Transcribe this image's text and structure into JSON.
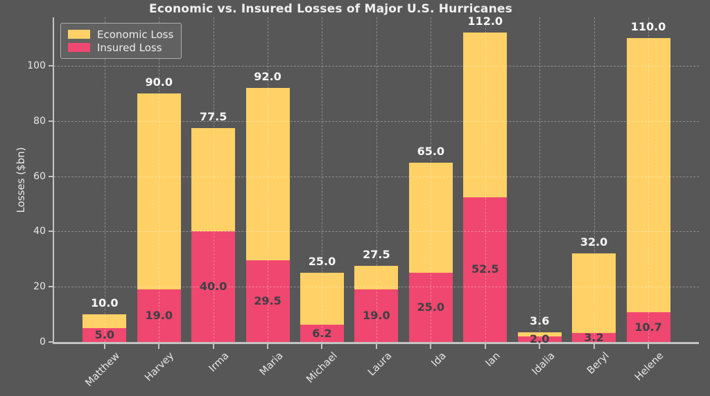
{
  "chart_data": {
    "type": "bar",
    "bar_mode": "overlay",
    "title": "Economic vs. Insured Losses of Major U.S. Hurricanes",
    "xlabel": "",
    "ylabel": "Losses ($bn)",
    "categories": [
      "Matthew",
      "Harvey",
      "Irma",
      "Maria",
      "Michael",
      "Laura",
      "Ida",
      "Ian",
      "Idalia",
      "Beryl",
      "Helene"
    ],
    "series": [
      {
        "name": "Economic Loss",
        "color": "#FFD166",
        "values": [
          10.0,
          90.0,
          77.5,
          92.0,
          25.0,
          27.5,
          65.0,
          112.0,
          3.6,
          32.0,
          110.0
        ]
      },
      {
        "name": "Insured Loss",
        "color": "#EF476F",
        "values": [
          5.0,
          19.0,
          40.0,
          29.5,
          6.2,
          19.0,
          25.0,
          52.5,
          2.0,
          3.2,
          10.7
        ]
      }
    ],
    "yticks": [
      0,
      20,
      40,
      60,
      80,
      100
    ],
    "ylim": [
      0,
      117.5
    ],
    "grid": "dashed, drawn above bars",
    "legend_position": "upper left",
    "value_label_format": "one decimal",
    "colors": {
      "background": "#575757",
      "axis": "#c4c4c4",
      "tick_labels": "#e8e8e8",
      "title": "#f0f0f0",
      "economic_value_label": "#f7f7f7",
      "insured_value_label": "#3e4046"
    }
  }
}
